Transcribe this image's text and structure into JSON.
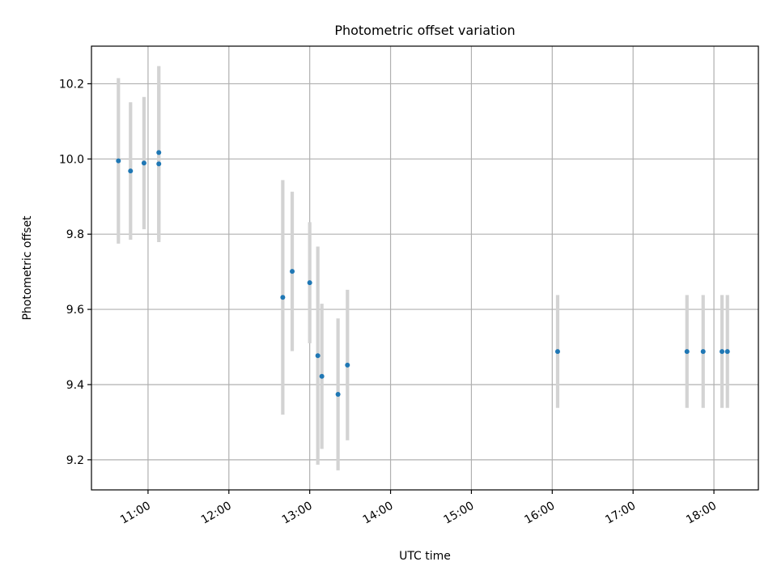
{
  "chart_data": {
    "type": "scatter",
    "title": "Photometric offset variation",
    "xlabel": "UTC time",
    "ylabel": "Photometric offset",
    "x_axis": {
      "kind": "time",
      "range": [
        "10:18",
        "18:33"
      ],
      "ticks": [
        "11:00",
        "12:00",
        "13:00",
        "14:00",
        "15:00",
        "16:00",
        "17:00",
        "18:00"
      ]
    },
    "y_axis": {
      "range": [
        9.12,
        10.3
      ],
      "ticks": [
        "9.2",
        "9.4",
        "9.6",
        "9.8",
        "10.0",
        "10.2"
      ]
    },
    "grid": true,
    "legend": "none",
    "point_color": "#1f77b4",
    "errorbar_color": "#d3d3d3",
    "series": [
      {
        "points": [
          {
            "time": "10:38",
            "y": 9.995,
            "err": 0.22
          },
          {
            "time": "10:47",
            "y": 9.968,
            "err": 0.183
          },
          {
            "time": "10:57",
            "y": 9.989,
            "err": 0.176
          },
          {
            "time": "11:08",
            "y": 10.017,
            "err": 0.23
          },
          {
            "time": "11:08",
            "y": 9.987,
            "err": 0.208
          },
          {
            "time": "12:40",
            "y": 9.632,
            "err": 0.312
          },
          {
            "time": "12:47",
            "y": 9.701,
            "err": 0.212
          },
          {
            "time": "13:00",
            "y": 9.671,
            "err": 0.161
          },
          {
            "time": "13:06",
            "y": 9.477,
            "err": 0.29
          },
          {
            "time": "13:09",
            "y": 9.422,
            "err": 0.193
          },
          {
            "time": "13:21",
            "y": 9.374,
            "err": 0.202
          },
          {
            "time": "13:28",
            "y": 9.452,
            "err": 0.2
          },
          {
            "time": "16:04",
            "y": 9.488,
            "err": 0.15
          },
          {
            "time": "17:40",
            "y": 9.488,
            "err": 0.15
          },
          {
            "time": "17:52",
            "y": 9.488,
            "err": 0.15
          },
          {
            "time": "18:06",
            "y": 9.488,
            "err": 0.15
          },
          {
            "time": "18:10",
            "y": 9.488,
            "err": 0.15
          }
        ]
      }
    ]
  }
}
